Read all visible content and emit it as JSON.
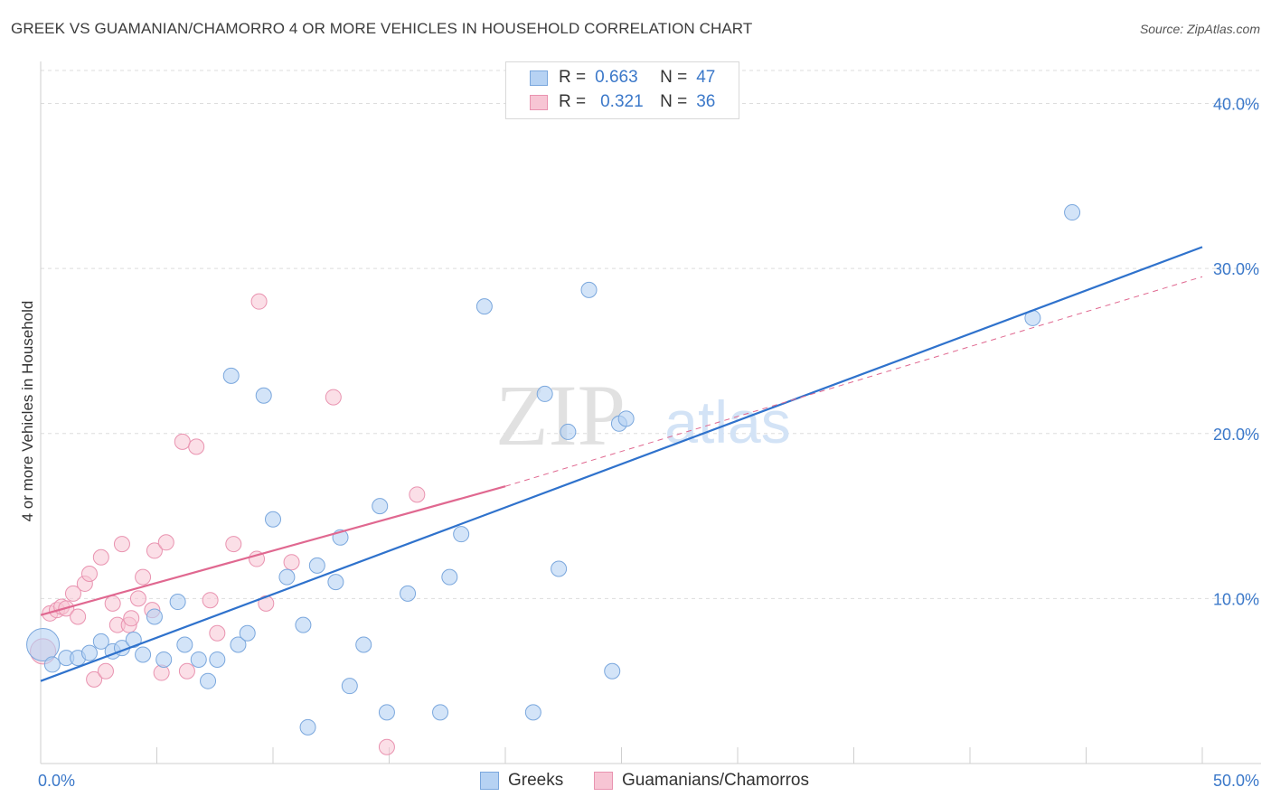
{
  "title": "GREEK VS GUAMANIAN/CHAMORRO 4 OR MORE VEHICLES IN HOUSEHOLD CORRELATION CHART",
  "source": "Source: ZipAtlas.com",
  "watermark": {
    "zip": "ZIP",
    "atlas": "atlas"
  },
  "legend_top": {
    "rows": [
      {
        "r_label": "R =",
        "r_value": "0.663",
        "n_label": "N =",
        "n_value": "47"
      },
      {
        "r_label": "R =",
        "r_value": "0.321",
        "n_label": "N =",
        "n_value": "36"
      }
    ]
  },
  "colors": {
    "greek_fill": "#b6d2f3",
    "greek_stroke": "#7aa7dd",
    "greek_line": "#2f72cc",
    "guam_fill": "#f7c5d4",
    "guam_stroke": "#e993b0",
    "guam_line": "#e06890",
    "grid": "#dddddd",
    "axis_text": "#3b78c9"
  },
  "chart_data": {
    "type": "scatter",
    "title": "GREEK VS GUAMANIAN/CHAMORRO 4 OR MORE VEHICLES IN HOUSEHOLD CORRELATION CHART",
    "xlabel": "",
    "ylabel": "4 or more Vehicles in Household",
    "xlim": [
      0,
      50
    ],
    "ylim": [
      0,
      42
    ],
    "x_tick_labels": [
      "0.0%",
      "50.0%"
    ],
    "y_ticks": [
      10,
      20,
      30,
      40
    ],
    "y_tick_labels": [
      "10.0%",
      "20.0%",
      "30.0%",
      "40.0%"
    ],
    "legend": [
      "Greeks",
      "Guamanians/Chamorros"
    ],
    "series": [
      {
        "name": "Greeks",
        "r": 0.663,
        "n": 47,
        "trend": {
          "x": [
            0,
            50
          ],
          "y": [
            5.0,
            31.3
          ]
        },
        "points": [
          {
            "x": 0.1,
            "y": 7.2,
            "big": true
          },
          {
            "x": 0.5,
            "y": 6.0
          },
          {
            "x": 1.1,
            "y": 6.4
          },
          {
            "x": 1.6,
            "y": 6.4
          },
          {
            "x": 2.1,
            "y": 6.7
          },
          {
            "x": 2.6,
            "y": 7.4
          },
          {
            "x": 3.1,
            "y": 6.8
          },
          {
            "x": 3.5,
            "y": 7.0
          },
          {
            "x": 4.0,
            "y": 7.5
          },
          {
            "x": 4.4,
            "y": 6.6
          },
          {
            "x": 4.9,
            "y": 8.9
          },
          {
            "x": 5.3,
            "y": 6.3
          },
          {
            "x": 5.9,
            "y": 9.8
          },
          {
            "x": 6.2,
            "y": 7.2
          },
          {
            "x": 6.8,
            "y": 6.3
          },
          {
            "x": 7.2,
            "y": 5.0
          },
          {
            "x": 7.6,
            "y": 6.3
          },
          {
            "x": 8.2,
            "y": 23.5
          },
          {
            "x": 8.5,
            "y": 7.2
          },
          {
            "x": 8.9,
            "y": 7.9
          },
          {
            "x": 9.6,
            "y": 22.3
          },
          {
            "x": 10.0,
            "y": 14.8
          },
          {
            "x": 10.6,
            "y": 11.3
          },
          {
            "x": 11.3,
            "y": 8.4
          },
          {
            "x": 11.5,
            "y": 2.2
          },
          {
            "x": 11.9,
            "y": 12.0
          },
          {
            "x": 12.7,
            "y": 11.0
          },
          {
            "x": 12.9,
            "y": 13.7
          },
          {
            "x": 13.3,
            "y": 4.7
          },
          {
            "x": 13.9,
            "y": 7.2
          },
          {
            "x": 14.6,
            "y": 15.6
          },
          {
            "x": 14.9,
            "y": 3.1
          },
          {
            "x": 15.8,
            "y": 10.3
          },
          {
            "x": 17.2,
            "y": 3.1
          },
          {
            "x": 17.6,
            "y": 11.3
          },
          {
            "x": 18.1,
            "y": 13.9
          },
          {
            "x": 19.1,
            "y": 27.7
          },
          {
            "x": 21.2,
            "y": 3.1
          },
          {
            "x": 21.7,
            "y": 22.4
          },
          {
            "x": 22.3,
            "y": 11.8
          },
          {
            "x": 22.7,
            "y": 20.1
          },
          {
            "x": 23.6,
            "y": 28.7
          },
          {
            "x": 24.6,
            "y": 5.6
          },
          {
            "x": 24.9,
            "y": 20.6
          },
          {
            "x": 25.2,
            "y": 20.9
          },
          {
            "x": 42.7,
            "y": 27.0
          },
          {
            "x": 44.4,
            "y": 33.4
          }
        ]
      },
      {
        "name": "Guamanians/Chamorros",
        "r": 0.321,
        "n": 36,
        "trend": {
          "x": [
            0,
            20
          ],
          "y": [
            9.0,
            16.8
          ]
        },
        "trend_dashed": {
          "x": [
            20,
            50
          ],
          "y": [
            16.8,
            29.5
          ]
        },
        "points": [
          {
            "x": 0.1,
            "y": 6.8,
            "big": true
          },
          {
            "x": 0.4,
            "y": 9.1
          },
          {
            "x": 0.7,
            "y": 9.3
          },
          {
            "x": 0.9,
            "y": 9.5
          },
          {
            "x": 1.1,
            "y": 9.4
          },
          {
            "x": 1.4,
            "y": 10.3
          },
          {
            "x": 1.6,
            "y": 8.9
          },
          {
            "x": 1.9,
            "y": 10.9
          },
          {
            "x": 2.1,
            "y": 11.5
          },
          {
            "x": 2.3,
            "y": 5.1
          },
          {
            "x": 2.6,
            "y": 12.5
          },
          {
            "x": 2.8,
            "y": 5.6
          },
          {
            "x": 3.1,
            "y": 9.7
          },
          {
            "x": 3.3,
            "y": 8.4
          },
          {
            "x": 3.5,
            "y": 13.3
          },
          {
            "x": 3.8,
            "y": 8.4
          },
          {
            "x": 3.9,
            "y": 8.8
          },
          {
            "x": 4.2,
            "y": 10.0
          },
          {
            "x": 4.4,
            "y": 11.3
          },
          {
            "x": 4.8,
            "y": 9.3
          },
          {
            "x": 4.9,
            "y": 12.9
          },
          {
            "x": 5.2,
            "y": 5.5
          },
          {
            "x": 5.4,
            "y": 13.4
          },
          {
            "x": 6.1,
            "y": 19.5
          },
          {
            "x": 6.3,
            "y": 5.6
          },
          {
            "x": 6.7,
            "y": 19.2
          },
          {
            "x": 7.3,
            "y": 9.9
          },
          {
            "x": 7.6,
            "y": 7.9
          },
          {
            "x": 8.3,
            "y": 13.3
          },
          {
            "x": 9.3,
            "y": 12.4
          },
          {
            "x": 9.4,
            "y": 28.0
          },
          {
            "x": 9.7,
            "y": 9.7
          },
          {
            "x": 10.8,
            "y": 12.2
          },
          {
            "x": 12.6,
            "y": 22.2
          },
          {
            "x": 14.9,
            "y": 1.0
          },
          {
            "x": 16.2,
            "y": 16.3
          }
        ]
      }
    ]
  }
}
